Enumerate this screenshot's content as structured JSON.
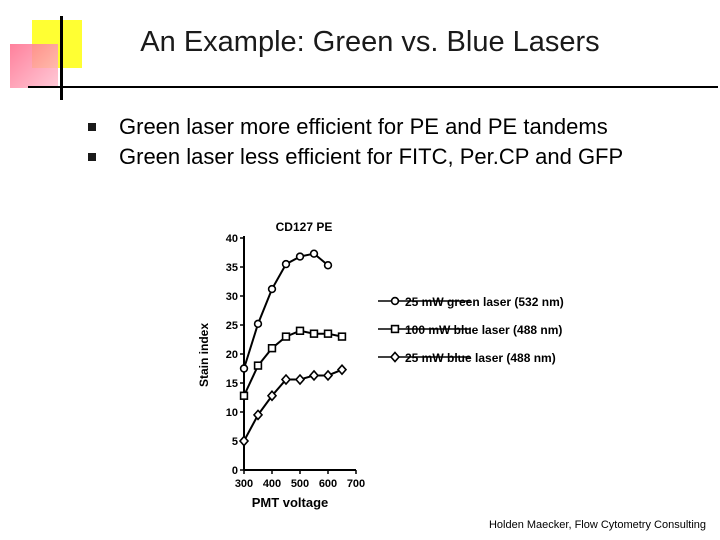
{
  "slide": {
    "title": "An Example:  Green vs. Blue Lasers",
    "bullets": [
      "Green laser more efficient for PE and PE tandems",
      "Green laser less efficient for FITC, Per.CP and GFP"
    ],
    "footer": "Holden Maecker, Flow Cytometry Consulting"
  },
  "chart_data": {
    "type": "line",
    "title": "CD127 PE",
    "xlabel": "PMT voltage",
    "ylabel": "Stain index",
    "xlim": [
      300,
      700
    ],
    "ylim": [
      0,
      40
    ],
    "xticks": [
      300,
      400,
      500,
      600,
      700
    ],
    "yticks": [
      0,
      5,
      10,
      15,
      20,
      25,
      30,
      35,
      40
    ],
    "x": [
      300,
      350,
      400,
      450,
      500,
      550,
      600,
      650
    ],
    "series": [
      {
        "name": "25 mW green laser (532 nm)",
        "marker": "circle",
        "values": [
          17.5,
          25.2,
          31.2,
          35.5,
          36.8,
          37.3,
          35.3,
          null
        ]
      },
      {
        "name": "100 mW blue laser (488 nm)",
        "marker": "square",
        "values": [
          12.8,
          18.0,
          21.0,
          23.0,
          24.0,
          23.5,
          23.5,
          23.0
        ]
      },
      {
        "name": "25 mW blue laser (488 nm)",
        "marker": "diamond",
        "values": [
          5.0,
          9.5,
          12.8,
          15.6,
          15.6,
          16.3,
          16.3,
          17.3
        ]
      }
    ],
    "legend_position": "right",
    "grid": false
  }
}
